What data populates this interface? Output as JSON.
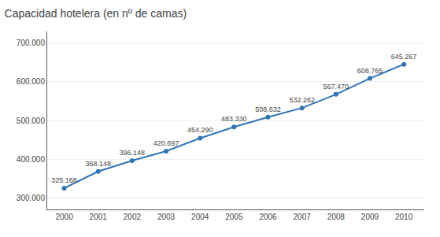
{
  "chart_data": {
    "type": "line",
    "title": "Capacidad hotelera (en nº de camas)",
    "x": [
      2000,
      2001,
      2002,
      2003,
      2004,
      2005,
      2006,
      2007,
      2008,
      2009,
      2010
    ],
    "values": [
      325168,
      368148,
      396148,
      420697,
      454290,
      483330,
      508632,
      532262,
      567470,
      608765,
      645267
    ],
    "value_labels": [
      "325.168",
      "368.148",
      "396.148",
      "420.697",
      "454.290",
      "483.330",
      "508.632",
      "532.262",
      "567.470",
      "608.765",
      "645.267"
    ],
    "data_labels": true,
    "color": "#2e75b6",
    "marker": "o",
    "xlim": [
      1999.5,
      2010.6
    ],
    "xticks": [
      2000,
      2001,
      2002,
      2003,
      2004,
      2005,
      2006,
      2007,
      2008,
      2009,
      2010
    ],
    "ylim": [
      270000,
      730000
    ],
    "yticks": [
      {
        "value": 300000,
        "label": "300.000"
      },
      {
        "value": 400000,
        "label": "400.000"
      },
      {
        "value": 500000,
        "label": "500.000"
      },
      {
        "value": 600000,
        "label": "600.000"
      },
      {
        "value": 700000,
        "label": "700.000"
      }
    ],
    "grid": true
  }
}
